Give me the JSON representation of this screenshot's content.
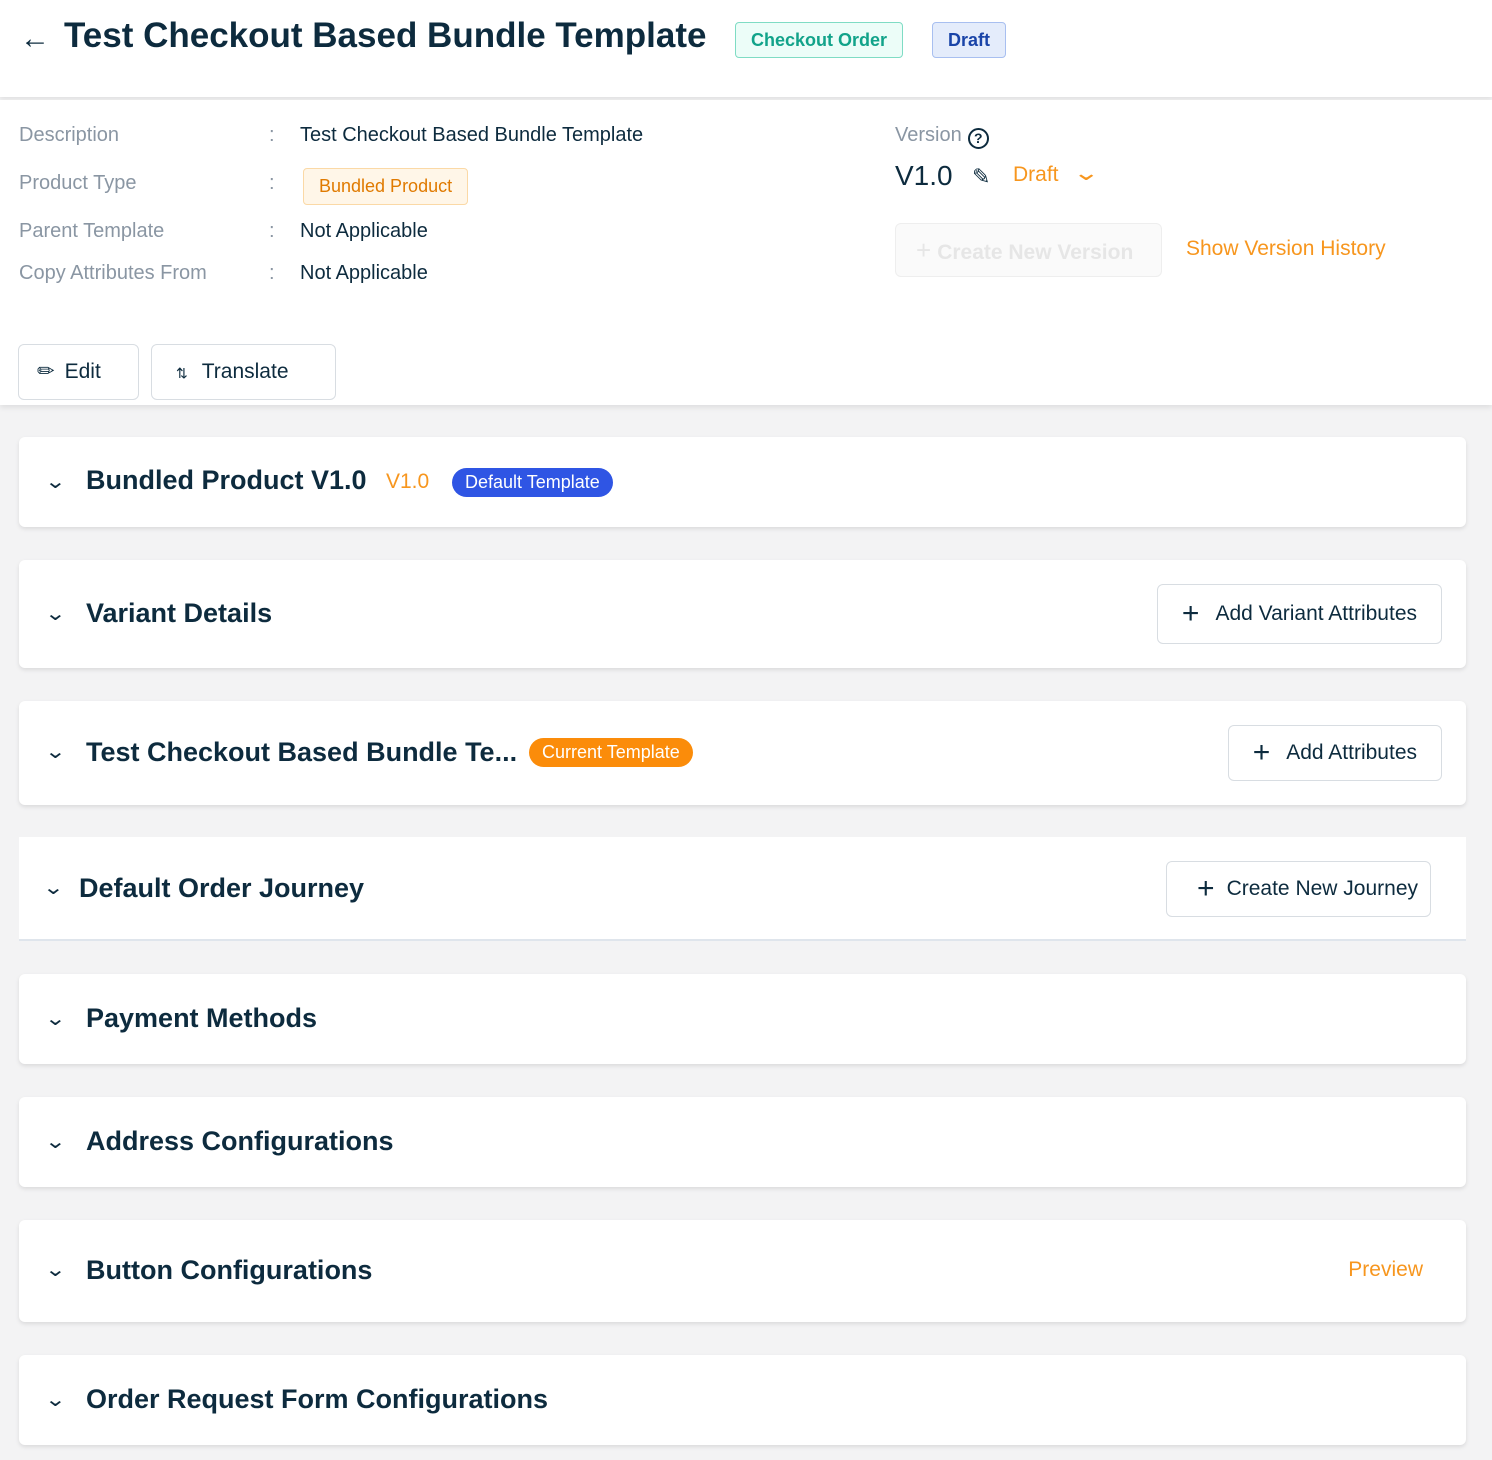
{
  "header": {
    "title": "Test Checkout Based Bundle Template",
    "tags": [
      "Checkout Order",
      "Draft"
    ],
    "back_icon": "arrow-left-icon"
  },
  "info": {
    "fields": [
      {
        "label": "Description",
        "value": "Test Checkout Based Bundle Template"
      },
      {
        "label": "Product Type",
        "value": "Bundled Product"
      },
      {
        "label": "Parent Template",
        "value": "Not Applicable"
      },
      {
        "label": "Copy Attributes From",
        "value": "Not Applicable"
      }
    ],
    "separator": ":",
    "version_label": "Version",
    "version_value": "V1.0",
    "version_status": "Draft",
    "create_new_version": "Create New Version",
    "show_version_history": "Show Version History"
  },
  "actions": {
    "edit": "Edit",
    "translate": "Translate"
  },
  "sections": [
    {
      "title": "Bundled Product V1.0",
      "version": "V1.0",
      "badge": "Default Template"
    },
    {
      "title": "Variant Details",
      "action": "Add Variant Attributes"
    },
    {
      "title": "Test Checkout Based Bundle Te...",
      "badge": "Current Template",
      "action": "Add Attributes"
    },
    {
      "title": "Default Order Journey",
      "action": "Create New Journey"
    },
    {
      "title": "Payment Methods"
    },
    {
      "title": "Address Configurations"
    },
    {
      "title": "Button Configurations",
      "action": "Preview"
    },
    {
      "title": "Order Request Form Configurations"
    }
  ],
  "colors": {
    "primary": "#0d2b3e",
    "accent": "#f7961e",
    "default_badge": "#2f55e4",
    "current_badge": "#fb8c0a"
  }
}
